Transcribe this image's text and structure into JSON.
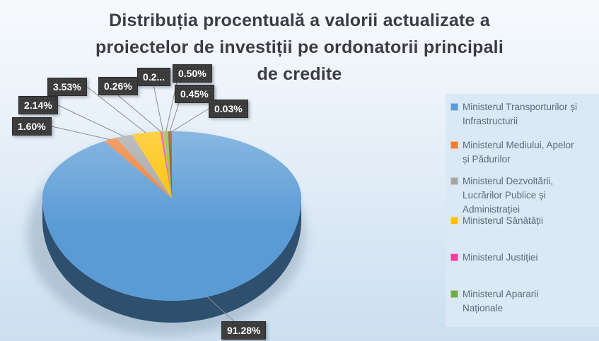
{
  "chart_data": {
    "type": "pie",
    "title": "Distribuția procentuală a valorii actualizate a proiectelor de investiții pe ordonatorii principali de credite",
    "title_lines": [
      "Distribuția procentuală a valorii actualizate a",
      "proiectelor de investiții pe ordonatorii principali",
      "de credite"
    ],
    "legend_position": "right",
    "slices": [
      {
        "name": "Ministerul Transporturilor și Infrastructurii",
        "value": 91.28,
        "display": "91.28%",
        "color": "#5b9bd5"
      },
      {
        "name": "Ministerul Mediului, Apelor și Pădurilor",
        "value": 1.6,
        "display": "1.60%",
        "color": "#ed7d31"
      },
      {
        "name": "Ministerul Dezvoltării, Lucrărilor Publice și Administrației",
        "value": 2.14,
        "display": "2.14%",
        "color": "#a5a5a5"
      },
      {
        "name": "Ministerul Sănătății",
        "value": 3.53,
        "display": "3.53%",
        "color": "#ffc000"
      },
      {
        "name": "Ministerul Justiției",
        "value": 0.26,
        "display": "0.26%",
        "color": "#ee3c9c"
      },
      {
        "name": "",
        "value": 0.21,
        "display": "0.2...",
        "color": "#d9a31e"
      },
      {
        "name": "Ministerul Apararii Naționale",
        "value": 0.5,
        "display": "0.50%",
        "color": "#77bd4d"
      },
      {
        "name": "",
        "value": 0.45,
        "display": "0.45%",
        "color": "#8c3d10"
      },
      {
        "name": "",
        "value": 0.03,
        "display": "0.03%",
        "color": "#44546a"
      }
    ],
    "legend_items": [
      {
        "label": "Ministerul Transporturilor și\nInfrastructurii",
        "color": "#5b9bd5"
      },
      {
        "label": "Ministerul Mediului, Apelor\nși Pădurilor",
        "color": "#ed7d31"
      },
      {
        "label": "Ministerul Dezvoltării,\nLucrărilor Publice și\nAdministrației",
        "color": "#a5a5a5"
      },
      {
        "label": "Ministerul Sănătății",
        "color": "#ffc000"
      },
      {
        "label": "Ministerul Justiției",
        "color": "#ee3c9c"
      },
      {
        "label": "Ministerul Apararii\nNaționale",
        "color": "#70ad47"
      }
    ]
  },
  "styles": {
    "background_top": "#f7fafd",
    "background_bottom": "#cbdff0",
    "legend_panel_bg": "#dbe8f5",
    "legend_text_color": "#5a6b7c",
    "title_color": "#3a3d44",
    "label_box_bg": "#3a3a3a",
    "label_text_color": "#ffffff",
    "leader_line_color": "#8c8c8c",
    "pie_side_color": "#2e4f6d"
  }
}
